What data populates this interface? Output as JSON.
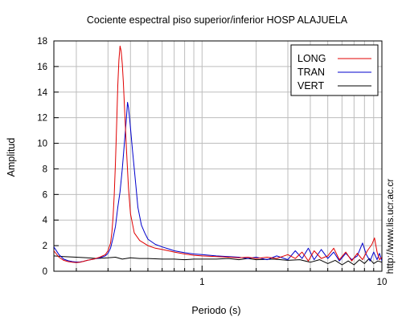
{
  "chart_data": {
    "type": "line",
    "title": "Cociente espectral piso superior/inferior  HOSP ALAJUELA",
    "xlabel": "Periodo (s)",
    "ylabel": "Amplitud",
    "xscale": "log",
    "xlim": [
      0.15,
      10
    ],
    "ylim": [
      0,
      18
    ],
    "xticks": [
      {
        "value": 1,
        "label": "1"
      },
      {
        "value": 10,
        "label": "10"
      }
    ],
    "yticks": [
      0,
      2,
      4,
      6,
      8,
      10,
      12,
      14,
      16,
      18
    ],
    "grid": true,
    "legend_position": "top-right",
    "annotation": "http://www.lis.ucr.ac.cr",
    "series": [
      {
        "name": "LONG",
        "color": "#e00000",
        "points": [
          [
            0.15,
            1.6
          ],
          [
            0.16,
            1.1
          ],
          [
            0.17,
            0.85
          ],
          [
            0.18,
            0.75
          ],
          [
            0.19,
            0.7
          ],
          [
            0.2,
            0.68
          ],
          [
            0.21,
            0.7
          ],
          [
            0.22,
            0.78
          ],
          [
            0.23,
            0.85
          ],
          [
            0.25,
            0.95
          ],
          [
            0.27,
            1.1
          ],
          [
            0.29,
            1.3
          ],
          [
            0.3,
            1.6
          ],
          [
            0.31,
            2.2
          ],
          [
            0.315,
            3.0
          ],
          [
            0.32,
            4.2
          ],
          [
            0.325,
            6.0
          ],
          [
            0.33,
            8.5
          ],
          [
            0.335,
            11.5
          ],
          [
            0.34,
            14.5
          ],
          [
            0.345,
            16.5
          ],
          [
            0.35,
            17.6
          ],
          [
            0.355,
            17.2
          ],
          [
            0.36,
            16.2
          ],
          [
            0.365,
            14.8
          ],
          [
            0.37,
            13.0
          ],
          [
            0.38,
            9.5
          ],
          [
            0.39,
            6.5
          ],
          [
            0.4,
            4.5
          ],
          [
            0.42,
            3.0
          ],
          [
            0.45,
            2.4
          ],
          [
            0.5,
            2.0
          ],
          [
            0.55,
            1.8
          ],
          [
            0.6,
            1.7
          ],
          [
            0.65,
            1.6
          ],
          [
            0.7,
            1.5
          ],
          [
            0.8,
            1.35
          ],
          [
            0.9,
            1.25
          ],
          [
            1.0,
            1.2
          ],
          [
            1.2,
            1.15
          ],
          [
            1.4,
            1.1
          ],
          [
            1.6,
            1.05
          ],
          [
            1.8,
            1.1
          ],
          [
            2.0,
            1.0
          ],
          [
            2.3,
            1.1
          ],
          [
            2.6,
            1.0
          ],
          [
            3.0,
            1.3
          ],
          [
            3.3,
            1.0
          ],
          [
            3.6,
            1.5
          ],
          [
            3.9,
            0.8
          ],
          [
            4.2,
            1.6
          ],
          [
            4.6,
            1.0
          ],
          [
            5.0,
            1.2
          ],
          [
            5.4,
            1.8
          ],
          [
            5.8,
            0.9
          ],
          [
            6.3,
            1.5
          ],
          [
            6.8,
            0.8
          ],
          [
            7.3,
            1.4
          ],
          [
            7.8,
            0.9
          ],
          [
            8.3,
            1.6
          ],
          [
            8.8,
            2.1
          ],
          [
            9.1,
            2.6
          ],
          [
            9.4,
            1.5
          ],
          [
            9.7,
            0.9
          ],
          [
            10.0,
            1.1
          ]
        ]
      },
      {
        "name": "TRAN",
        "color": "#0000cc",
        "points": [
          [
            0.15,
            1.9
          ],
          [
            0.16,
            1.3
          ],
          [
            0.17,
            0.95
          ],
          [
            0.18,
            0.82
          ],
          [
            0.19,
            0.75
          ],
          [
            0.2,
            0.72
          ],
          [
            0.21,
            0.73
          ],
          [
            0.22,
            0.78
          ],
          [
            0.23,
            0.85
          ],
          [
            0.25,
            0.95
          ],
          [
            0.27,
            1.05
          ],
          [
            0.29,
            1.2
          ],
          [
            0.3,
            1.4
          ],
          [
            0.31,
            1.8
          ],
          [
            0.32,
            2.6
          ],
          [
            0.33,
            3.5
          ],
          [
            0.34,
            5.0
          ],
          [
            0.35,
            6.2
          ],
          [
            0.36,
            8.0
          ],
          [
            0.37,
            10.0
          ],
          [
            0.38,
            12.0
          ],
          [
            0.385,
            13.2
          ],
          [
            0.39,
            12.8
          ],
          [
            0.395,
            12.0
          ],
          [
            0.4,
            11.2
          ],
          [
            0.41,
            9.5
          ],
          [
            0.42,
            8.0
          ],
          [
            0.43,
            6.5
          ],
          [
            0.44,
            5.0
          ],
          [
            0.46,
            3.6
          ],
          [
            0.48,
            3.0
          ],
          [
            0.5,
            2.5
          ],
          [
            0.55,
            2.1
          ],
          [
            0.6,
            1.9
          ],
          [
            0.65,
            1.75
          ],
          [
            0.7,
            1.6
          ],
          [
            0.8,
            1.45
          ],
          [
            0.9,
            1.35
          ],
          [
            1.0,
            1.3
          ],
          [
            1.2,
            1.2
          ],
          [
            1.4,
            1.15
          ],
          [
            1.6,
            1.1
          ],
          [
            1.8,
            1.0
          ],
          [
            2.0,
            1.1
          ],
          [
            2.3,
            0.9
          ],
          [
            2.6,
            1.2
          ],
          [
            3.0,
            0.9
          ],
          [
            3.3,
            1.6
          ],
          [
            3.6,
            1.0
          ],
          [
            3.9,
            1.8
          ],
          [
            4.2,
            0.9
          ],
          [
            4.6,
            1.7
          ],
          [
            5.0,
            1.0
          ],
          [
            5.4,
            1.5
          ],
          [
            5.8,
            0.8
          ],
          [
            6.3,
            1.4
          ],
          [
            6.8,
            0.9
          ],
          [
            7.3,
            1.2
          ],
          [
            7.8,
            2.2
          ],
          [
            8.2,
            1.3
          ],
          [
            8.6,
            0.8
          ],
          [
            9.0,
            1.5
          ],
          [
            9.4,
            0.9
          ],
          [
            9.7,
            1.4
          ],
          [
            10.0,
            0.8
          ]
        ]
      },
      {
        "name": "VERT",
        "color": "#000000",
        "points": [
          [
            0.15,
            1.2
          ],
          [
            0.17,
            1.15
          ],
          [
            0.2,
            1.1
          ],
          [
            0.23,
            1.05
          ],
          [
            0.26,
            1.0
          ],
          [
            0.3,
            1.05
          ],
          [
            0.33,
            1.1
          ],
          [
            0.36,
            0.95
          ],
          [
            0.4,
            1.05
          ],
          [
            0.45,
            1.0
          ],
          [
            0.5,
            1.0
          ],
          [
            0.6,
            0.95
          ],
          [
            0.7,
            0.95
          ],
          [
            0.8,
            0.9
          ],
          [
            0.9,
            0.95
          ],
          [
            1.0,
            0.95
          ],
          [
            1.2,
            0.95
          ],
          [
            1.4,
            1.0
          ],
          [
            1.6,
            0.9
          ],
          [
            1.8,
            1.0
          ],
          [
            2.0,
            0.9
          ],
          [
            2.5,
            0.95
          ],
          [
            3.0,
            0.85
          ],
          [
            3.5,
            0.9
          ],
          [
            4.0,
            0.7
          ],
          [
            4.5,
            0.9
          ],
          [
            5.0,
            0.6
          ],
          [
            5.5,
            0.85
          ],
          [
            6.0,
            0.5
          ],
          [
            6.5,
            0.8
          ],
          [
            7.0,
            0.5
          ],
          [
            7.5,
            0.9
          ],
          [
            8.0,
            0.6
          ],
          [
            8.5,
            1.0
          ],
          [
            9.0,
            0.6
          ],
          [
            9.5,
            0.8
          ],
          [
            10.0,
            0.7
          ]
        ]
      }
    ]
  }
}
